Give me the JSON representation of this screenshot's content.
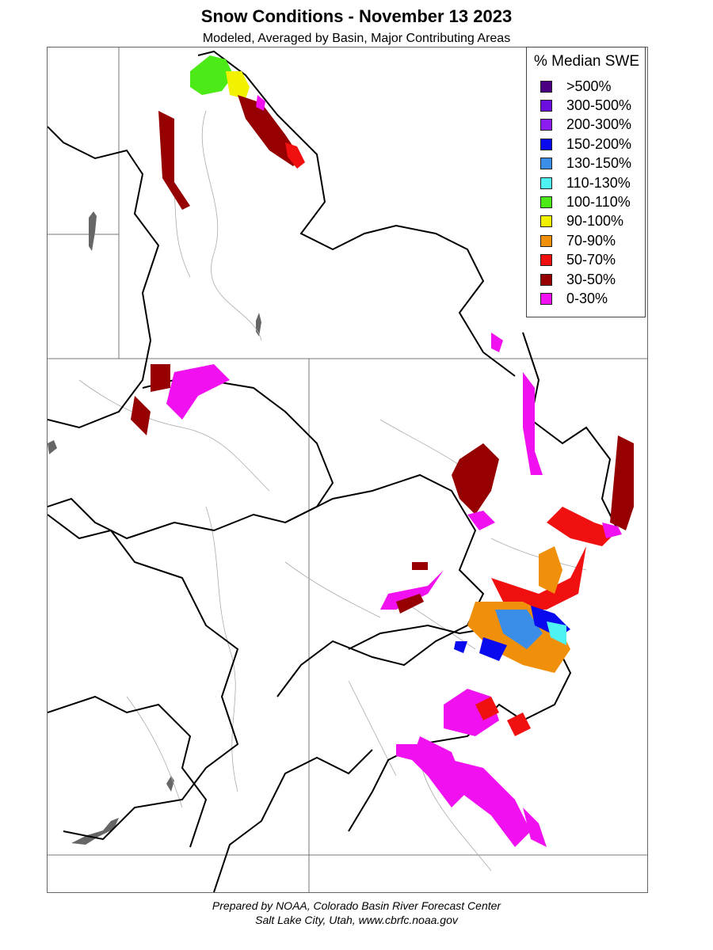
{
  "header": {
    "title": "Snow Conditions - November 13 2023",
    "subtitle": "Modeled, Averaged by Basin, Major Contributing Areas"
  },
  "legend": {
    "title": "% Median SWE",
    "items": [
      {
        "label": ">500%",
        "color": "#4b0082"
      },
      {
        "label": "300-500%",
        "color": "#6a0dde"
      },
      {
        "label": "200-300%",
        "color": "#8a1cf0"
      },
      {
        "label": "150-200%",
        "color": "#0a0aee"
      },
      {
        "label": "130-150%",
        "color": "#3a8ee8"
      },
      {
        "label": "110-130%",
        "color": "#4ff2f2"
      },
      {
        "label": "100-110%",
        "color": "#4cea16"
      },
      {
        "label": "90-100%",
        "color": "#f2f200"
      },
      {
        "label": "70-90%",
        "color": "#f0900a"
      },
      {
        "label": "50-70%",
        "color": "#f01010"
      },
      {
        "label": "30-50%",
        "color": "#960000"
      },
      {
        "label": "0-30%",
        "color": "#f010f0"
      }
    ]
  },
  "footer": {
    "line1": "Prepared by NOAA, Colorado Basin River Forecast Center",
    "line2": "Salt Lake City, Utah, www.cbrfc.noaa.gov"
  }
}
